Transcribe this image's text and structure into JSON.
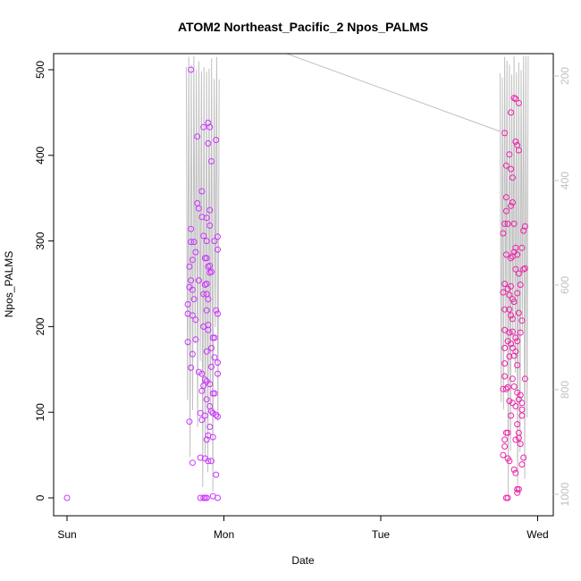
{
  "chart_data": {
    "type": "scatter",
    "title": "ATOM2 Northeast_Pacific_2 Npos_PALMS",
    "xlabel": "Date",
    "ylabel": "Npos_PALMS",
    "x_ticks": [
      "Sun",
      "Mon",
      "Tue",
      "Wed"
    ],
    "y_ticks": [
      "0",
      "100",
      "200",
      "300",
      "400",
      "500"
    ],
    "y2_ticks": [
      "200",
      "400",
      "600",
      "800",
      "1000"
    ],
    "xlim": [
      0,
      3.06
    ],
    "ylim": [
      -15,
      520
    ],
    "y2lim": [
      230,
      1000
    ],
    "y2_reversed": true,
    "grid": false,
    "colors": {
      "point_early": "#cc33ff",
      "point_late": "#ee22aa",
      "depth_line": "#c0c0c0",
      "frame": "#000000"
    },
    "series": [
      {
        "values": [
          {
            "x": 0.0,
            "y": 0
          },
          {
            "x": 0.77,
            "y": 182
          },
          {
            "x": 0.77,
            "y": 215
          },
          {
            "x": 0.77,
            "y": 226
          },
          {
            "x": 0.78,
            "y": 246
          },
          {
            "x": 0.78,
            "y": 270
          },
          {
            "x": 0.78,
            "y": 89
          },
          {
            "x": 0.79,
            "y": 500
          },
          {
            "x": 0.79,
            "y": 314
          },
          {
            "x": 0.79,
            "y": 254
          },
          {
            "x": 0.79,
            "y": 299
          },
          {
            "x": 0.79,
            "y": 152
          },
          {
            "x": 0.8,
            "y": 278
          },
          {
            "x": 0.8,
            "y": 168
          },
          {
            "x": 0.8,
            "y": 243
          },
          {
            "x": 0.8,
            "y": 213
          },
          {
            "x": 0.8,
            "y": 41
          },
          {
            "x": 0.81,
            "y": 299
          },
          {
            "x": 0.81,
            "y": 232
          },
          {
            "x": 0.82,
            "y": 185
          },
          {
            "x": 0.82,
            "y": 208
          },
          {
            "x": 0.82,
            "y": 287
          },
          {
            "x": 0.83,
            "y": 344
          },
          {
            "x": 0.83,
            "y": 422
          },
          {
            "x": 0.84,
            "y": 338
          },
          {
            "x": 0.84,
            "y": 254
          },
          {
            "x": 0.84,
            "y": 147
          },
          {
            "x": 0.85,
            "y": 47
          },
          {
            "x": 0.85,
            "y": 99
          },
          {
            "x": 0.85,
            "y": 0
          },
          {
            "x": 0.86,
            "y": 358
          },
          {
            "x": 0.86,
            "y": 328
          },
          {
            "x": 0.86,
            "y": 145
          },
          {
            "x": 0.86,
            "y": 125
          },
          {
            "x": 0.86,
            "y": 91
          },
          {
            "x": 0.87,
            "y": 433
          },
          {
            "x": 0.87,
            "y": 306
          },
          {
            "x": 0.87,
            "y": 238
          },
          {
            "x": 0.87,
            "y": 200
          },
          {
            "x": 0.87,
            "y": 131
          },
          {
            "x": 0.87,
            "y": 0
          },
          {
            "x": 0.88,
            "y": 280
          },
          {
            "x": 0.88,
            "y": 249
          },
          {
            "x": 0.88,
            "y": 138
          },
          {
            "x": 0.88,
            "y": 96
          },
          {
            "x": 0.88,
            "y": 46
          },
          {
            "x": 0.88,
            "y": 0
          },
          {
            "x": 0.89,
            "y": 327
          },
          {
            "x": 0.89,
            "y": 300
          },
          {
            "x": 0.89,
            "y": 280
          },
          {
            "x": 0.89,
            "y": 250
          },
          {
            "x": 0.89,
            "y": 238
          },
          {
            "x": 0.89,
            "y": 219
          },
          {
            "x": 0.89,
            "y": 171
          },
          {
            "x": 0.89,
            "y": 136
          },
          {
            "x": 0.89,
            "y": 115
          },
          {
            "x": 0.89,
            "y": 68
          },
          {
            "x": 0.89,
            "y": 0
          },
          {
            "x": 0.9,
            "y": 438
          },
          {
            "x": 0.9,
            "y": 414
          },
          {
            "x": 0.9,
            "y": 270
          },
          {
            "x": 0.9,
            "y": 232
          },
          {
            "x": 0.9,
            "y": 202
          },
          {
            "x": 0.9,
            "y": 196
          },
          {
            "x": 0.9,
            "y": 73
          },
          {
            "x": 0.9,
            "y": 43
          },
          {
            "x": 0.91,
            "y": 433
          },
          {
            "x": 0.91,
            "y": 336
          },
          {
            "x": 0.91,
            "y": 318
          },
          {
            "x": 0.91,
            "y": 271
          },
          {
            "x": 0.91,
            "y": 263
          },
          {
            "x": 0.91,
            "y": 133
          },
          {
            "x": 0.91,
            "y": 107
          },
          {
            "x": 0.91,
            "y": 83
          },
          {
            "x": 0.92,
            "y": 393
          },
          {
            "x": 0.92,
            "y": 264
          },
          {
            "x": 0.92,
            "y": 175
          },
          {
            "x": 0.92,
            "y": 153
          },
          {
            "x": 0.92,
            "y": 101
          },
          {
            "x": 0.92,
            "y": 43
          },
          {
            "x": 0.93,
            "y": 187
          },
          {
            "x": 0.93,
            "y": 122
          },
          {
            "x": 0.93,
            "y": 99
          },
          {
            "x": 0.93,
            "y": 71
          },
          {
            "x": 0.93,
            "y": 2
          },
          {
            "x": 0.94,
            "y": 300
          },
          {
            "x": 0.94,
            "y": 187
          },
          {
            "x": 0.94,
            "y": 164
          },
          {
            "x": 0.94,
            "y": 122
          },
          {
            "x": 0.95,
            "y": 418
          },
          {
            "x": 0.95,
            "y": 219
          },
          {
            "x": 0.95,
            "y": 97
          },
          {
            "x": 0.95,
            "y": 27
          },
          {
            "x": 0.96,
            "y": 305
          },
          {
            "x": 0.96,
            "y": 290
          },
          {
            "x": 0.96,
            "y": 215
          },
          {
            "x": 0.96,
            "y": 158
          },
          {
            "x": 0.96,
            "y": 145
          },
          {
            "x": 0.96,
            "y": 95
          },
          {
            "x": 0.96,
            "y": 0
          }
        ]
      },
      {
        "values": [
          {
            "x": 2.78,
            "y": 309
          },
          {
            "x": 2.78,
            "y": 240
          },
          {
            "x": 2.78,
            "y": 127
          },
          {
            "x": 2.78,
            "y": 50
          },
          {
            "x": 2.79,
            "y": 426
          },
          {
            "x": 2.79,
            "y": 320
          },
          {
            "x": 2.79,
            "y": 250
          },
          {
            "x": 2.79,
            "y": 220
          },
          {
            "x": 2.79,
            "y": 196
          },
          {
            "x": 2.79,
            "y": 175
          },
          {
            "x": 2.79,
            "y": 157
          },
          {
            "x": 2.79,
            "y": 142
          },
          {
            "x": 2.79,
            "y": 68
          },
          {
            "x": 2.79,
            "y": 60
          },
          {
            "x": 2.8,
            "y": 388
          },
          {
            "x": 2.8,
            "y": 351
          },
          {
            "x": 2.8,
            "y": 335
          },
          {
            "x": 2.8,
            "y": 284
          },
          {
            "x": 2.8,
            "y": 127
          },
          {
            "x": 2.8,
            "y": 76
          },
          {
            "x": 2.8,
            "y": 0
          },
          {
            "x": 2.81,
            "y": 320
          },
          {
            "x": 2.81,
            "y": 244
          },
          {
            "x": 2.81,
            "y": 183
          },
          {
            "x": 2.81,
            "y": 129
          },
          {
            "x": 2.81,
            "y": 76
          },
          {
            "x": 2.81,
            "y": 46
          },
          {
            "x": 2.81,
            "y": 0
          },
          {
            "x": 2.82,
            "y": 401
          },
          {
            "x": 2.82,
            "y": 237
          },
          {
            "x": 2.82,
            "y": 220
          },
          {
            "x": 2.82,
            "y": 193
          },
          {
            "x": 2.82,
            "y": 165
          },
          {
            "x": 2.82,
            "y": 113
          },
          {
            "x": 2.82,
            "y": 43
          },
          {
            "x": 2.83,
            "y": 450
          },
          {
            "x": 2.83,
            "y": 384
          },
          {
            "x": 2.83,
            "y": 341
          },
          {
            "x": 2.83,
            "y": 280
          },
          {
            "x": 2.83,
            "y": 247
          },
          {
            "x": 2.83,
            "y": 213
          },
          {
            "x": 2.83,
            "y": 180
          },
          {
            "x": 2.83,
            "y": 96
          },
          {
            "x": 2.84,
            "y": 374
          },
          {
            "x": 2.84,
            "y": 345
          },
          {
            "x": 2.84,
            "y": 282
          },
          {
            "x": 2.84,
            "y": 232
          },
          {
            "x": 2.84,
            "y": 209
          },
          {
            "x": 2.84,
            "y": 194
          },
          {
            "x": 2.84,
            "y": 175
          },
          {
            "x": 2.84,
            "y": 139
          },
          {
            "x": 2.84,
            "y": 111
          },
          {
            "x": 2.85,
            "y": 467
          },
          {
            "x": 2.85,
            "y": 320
          },
          {
            "x": 2.85,
            "y": 287
          },
          {
            "x": 2.85,
            "y": 229
          },
          {
            "x": 2.85,
            "y": 166
          },
          {
            "x": 2.85,
            "y": 130
          },
          {
            "x": 2.85,
            "y": 33
          },
          {
            "x": 2.86,
            "y": 466
          },
          {
            "x": 2.86,
            "y": 416
          },
          {
            "x": 2.86,
            "y": 292
          },
          {
            "x": 2.86,
            "y": 267
          },
          {
            "x": 2.86,
            "y": 187
          },
          {
            "x": 2.86,
            "y": 171
          },
          {
            "x": 2.86,
            "y": 107
          },
          {
            "x": 2.86,
            "y": 68
          },
          {
            "x": 2.86,
            "y": 29
          },
          {
            "x": 2.87,
            "y": 412
          },
          {
            "x": 2.87,
            "y": 284
          },
          {
            "x": 2.87,
            "y": 239
          },
          {
            "x": 2.87,
            "y": 183
          },
          {
            "x": 2.87,
            "y": 155
          },
          {
            "x": 2.87,
            "y": 123
          },
          {
            "x": 2.87,
            "y": 86
          },
          {
            "x": 2.87,
            "y": 10
          },
          {
            "x": 2.87,
            "y": 6
          },
          {
            "x": 2.88,
            "y": 461
          },
          {
            "x": 2.88,
            "y": 406
          },
          {
            "x": 2.88,
            "y": 262
          },
          {
            "x": 2.88,
            "y": 216
          },
          {
            "x": 2.88,
            "y": 115
          },
          {
            "x": 2.88,
            "y": 76
          },
          {
            "x": 2.88,
            "y": 70
          },
          {
            "x": 2.88,
            "y": 10
          },
          {
            "x": 2.89,
            "y": 249
          },
          {
            "x": 2.89,
            "y": 193
          },
          {
            "x": 2.89,
            "y": 120
          },
          {
            "x": 2.89,
            "y": 63
          },
          {
            "x": 2.9,
            "y": 292
          },
          {
            "x": 2.9,
            "y": 207
          },
          {
            "x": 2.9,
            "y": 111
          },
          {
            "x": 2.9,
            "y": 103
          },
          {
            "x": 2.9,
            "y": 96
          },
          {
            "x": 2.9,
            "y": 39
          },
          {
            "x": 2.91,
            "y": 312
          },
          {
            "x": 2.91,
            "y": 267
          },
          {
            "x": 2.91,
            "y": 47
          },
          {
            "x": 2.92,
            "y": 317
          },
          {
            "x": 2.92,
            "y": 268
          },
          {
            "x": 2.92,
            "y": 139
          }
        ]
      }
    ]
  }
}
